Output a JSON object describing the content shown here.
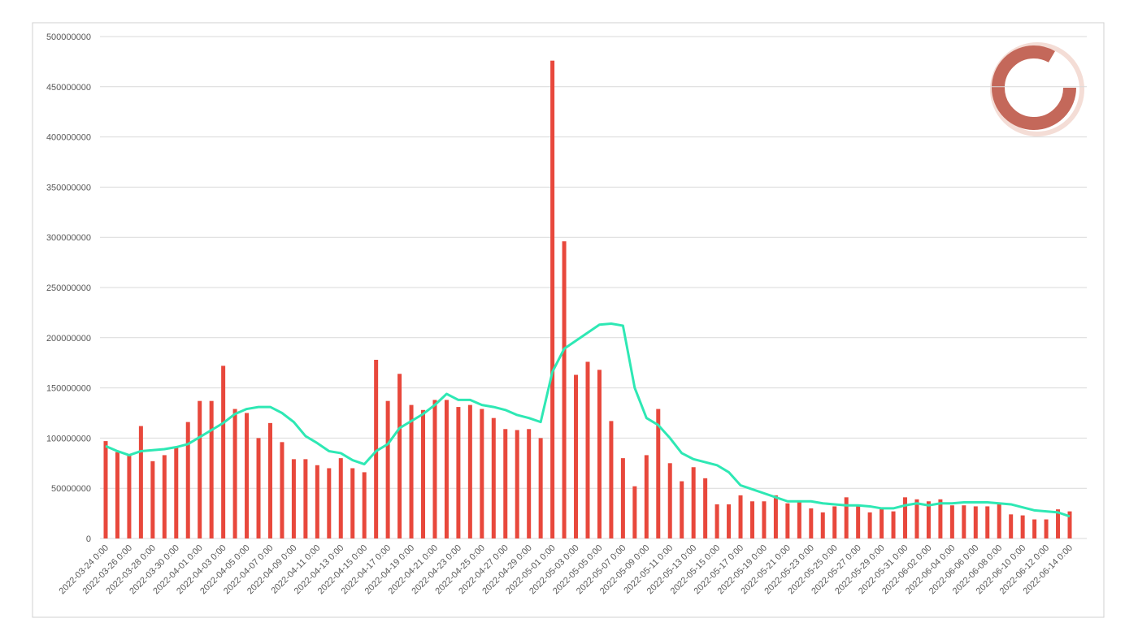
{
  "chart_data": {
    "type": "bar",
    "categories": [
      "2022-03-24 0:00",
      null,
      "2022-03-26 0:00",
      null,
      "2022-03-28 0:00",
      null,
      "2022-03-30 0:00",
      null,
      "2022-04-01 0:00",
      null,
      "2022-04-03 0:00",
      null,
      "2022-04-05 0:00",
      null,
      "2022-04-07 0:00",
      null,
      "2022-04-09 0:00",
      null,
      "2022-04-11 0:00",
      null,
      "2022-04-13 0:00",
      null,
      "2022-04-15 0:00",
      null,
      "2022-04-17 0:00",
      null,
      "2022-04-19 0:00",
      null,
      "2022-04-21 0:00",
      null,
      "2022-04-23 0:00",
      null,
      "2022-04-25 0:00",
      null,
      "2022-04-27 0:00",
      null,
      "2022-04-29 0:00",
      null,
      "2022-05-01 0:00",
      null,
      "2022-05-03 0:00",
      null,
      "2022-05-05 0:00",
      null,
      "2022-05-07 0:00",
      null,
      "2022-05-09 0:00",
      null,
      "2022-05-11 0:00",
      null,
      "2022-05-13 0:00",
      null,
      "2022-05-15 0:00",
      null,
      "2022-05-17 0:00",
      null,
      "2022-05-19 0:00",
      null,
      "2022-05-21 0:00",
      null,
      "2022-05-23 0:00",
      null,
      "2022-05-25 0:00",
      null,
      "2022-05-27 0:00",
      null,
      "2022-05-29 0:00",
      null,
      "2022-05-31 0:00",
      null,
      "2022-06-02 0:00",
      null,
      "2022-06-04 0:00",
      null,
      "2022-06-06 0:00",
      null,
      "2022-06-08 0:00",
      null,
      "2022-06-10 0:00",
      null,
      "2022-06-12 0:00",
      null,
      "2022-06-14 0:00"
    ],
    "series": [
      {
        "type": "bar",
        "color": "#e8483c",
        "values": [
          97000000,
          86000000,
          83000000,
          112000000,
          77000000,
          83000000,
          91000000,
          116000000,
          137000000,
          137000000,
          172000000,
          129000000,
          125000000,
          100000000,
          115000000,
          96000000,
          79000000,
          79000000,
          73000000,
          70000000,
          80000000,
          70000000,
          66000000,
          178000000,
          137000000,
          164000000,
          133000000,
          128000000,
          138000000,
          138000000,
          131000000,
          133000000,
          129000000,
          120000000,
          109000000,
          108000000,
          109000000,
          100000000,
          476000000,
          296000000,
          163000000,
          176000000,
          168000000,
          117000000,
          80000000,
          52000000,
          83000000,
          129000000,
          75000000,
          57000000,
          71000000,
          60000000,
          34000000,
          34000000,
          43000000,
          37000000,
          37000000,
          43000000,
          35000000,
          37000000,
          30000000,
          26000000,
          32000000,
          41000000,
          33000000,
          26000000,
          30000000,
          27000000,
          41000000,
          39000000,
          37000000,
          39000000,
          33000000,
          33000000,
          32000000,
          32000000,
          35000000,
          24000000,
          23000000,
          19000000,
          19000000,
          29000000,
          27000000
        ]
      },
      {
        "type": "line",
        "color": "#2ee8b4",
        "values": [
          92000000,
          87000000,
          83000000,
          87000000,
          88000000,
          89000000,
          91000000,
          94000000,
          101000000,
          108000000,
          115000000,
          124000000,
          129000000,
          131000000,
          131000000,
          125000000,
          116000000,
          102000000,
          95000000,
          87000000,
          85000000,
          78000000,
          74000000,
          87000000,
          94000000,
          110000000,
          117000000,
          124000000,
          133000000,
          144000000,
          138000000,
          138000000,
          133000000,
          131000000,
          128000000,
          123000000,
          120000000,
          116000000,
          166000000,
          189000000,
          197000000,
          205000000,
          213000000,
          214000000,
          212000000,
          150000000,
          120000000,
          113000000,
          100000000,
          85000000,
          79000000,
          76000000,
          73000000,
          66000000,
          53000000,
          49000000,
          45000000,
          41000000,
          37000000,
          37000000,
          37000000,
          35000000,
          34000000,
          33000000,
          33000000,
          32000000,
          30000000,
          30000000,
          33000000,
          35000000,
          33000000,
          35000000,
          35000000,
          36000000,
          36000000,
          36000000,
          35000000,
          34000000,
          31000000,
          28000000,
          27000000,
          26000000,
          22000000
        ]
      }
    ],
    "ylim": [
      0,
      500000000
    ],
    "yticks": [
      0,
      50000000,
      100000000,
      150000000,
      200000000,
      250000000,
      300000000,
      350000000,
      400000000,
      450000000,
      500000000
    ],
    "grid": true
  }
}
